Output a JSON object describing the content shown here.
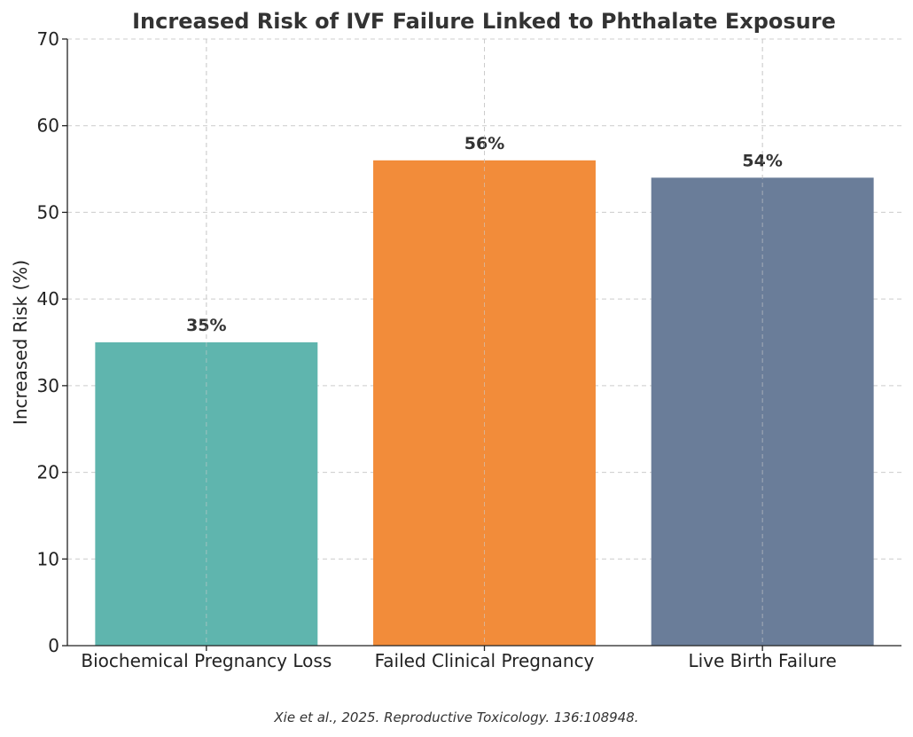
{
  "chart_data": {
    "type": "bar",
    "title": "Increased Risk of IVF Failure Linked to Phthalate Exposure",
    "xlabel": "",
    "ylabel": "Increased Risk (%)",
    "categories": [
      "Biochemical Pregnancy Loss",
      "Failed Clinical Pregnancy",
      "Live Birth Failure"
    ],
    "values": [
      35,
      56,
      54
    ],
    "data_labels": [
      "35%",
      "56%",
      "54%"
    ],
    "colors": [
      "#5fb5ae",
      "#f28c3a",
      "#6a7d99"
    ],
    "ylim": [
      0,
      70
    ],
    "yticks": [
      0,
      10,
      20,
      30,
      40,
      50,
      60,
      70
    ],
    "grid": true,
    "source": "Xie et al., 2025. Reproductive Toxicology. 136:108948."
  }
}
